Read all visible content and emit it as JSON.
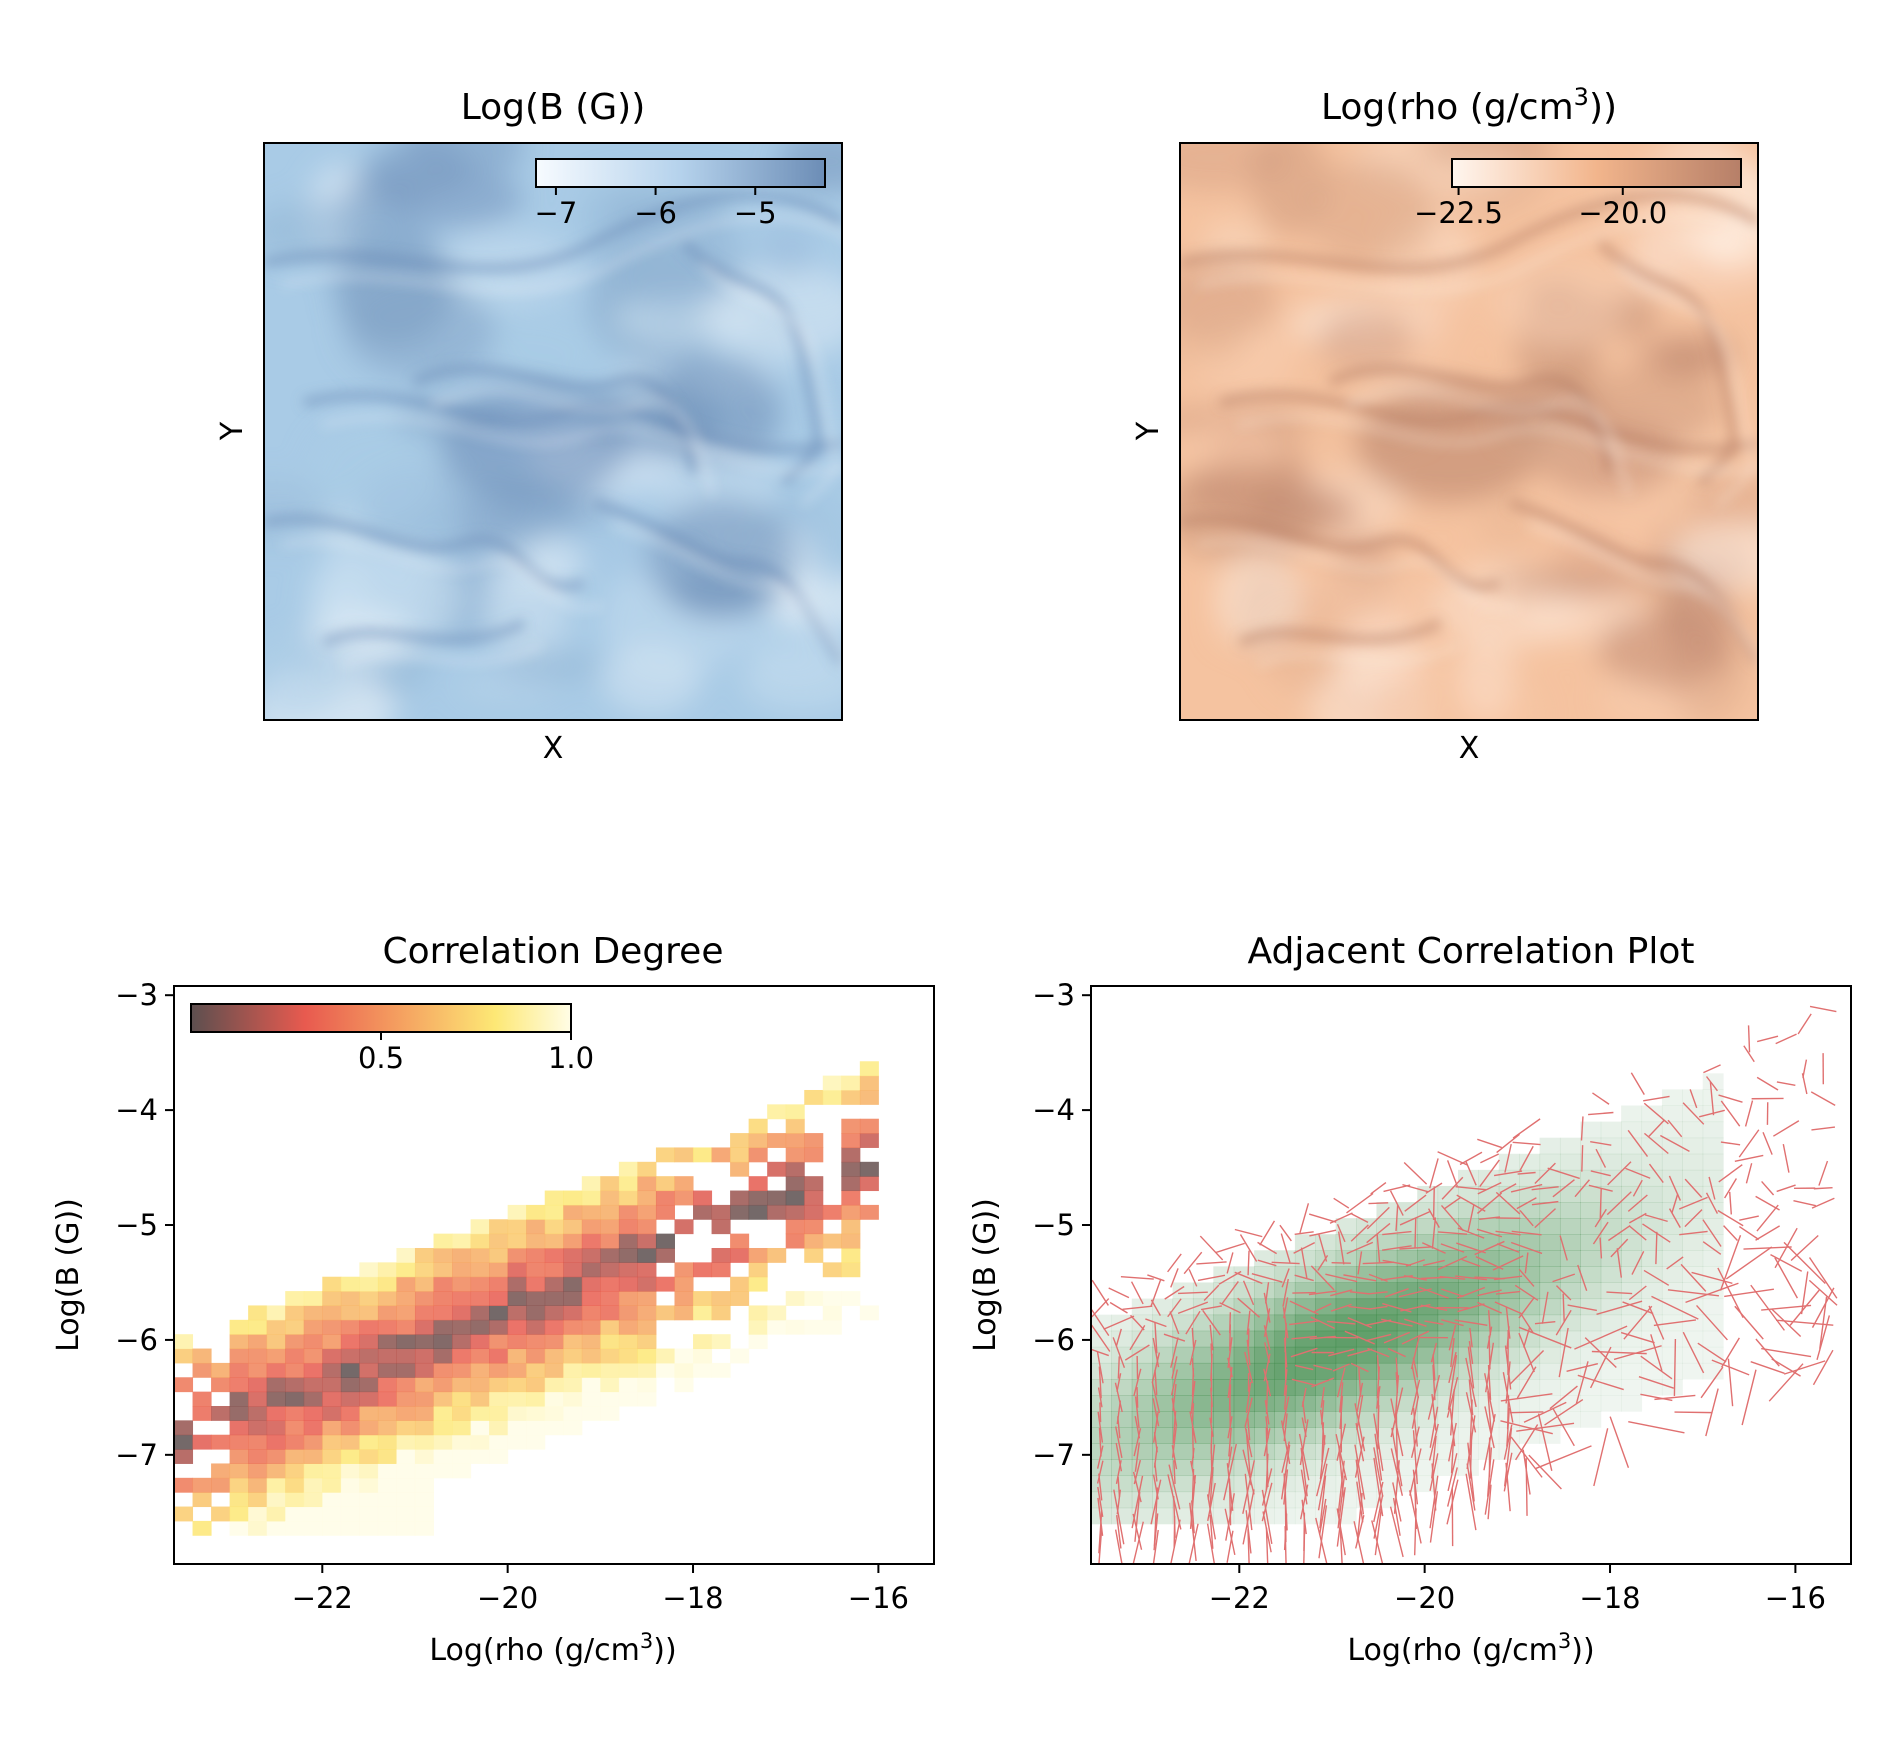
{
  "chart_data": [
    {
      "type": "heatmap",
      "title": "Log(B (G))",
      "xlabel": "X",
      "ylabel": "Y",
      "colormap": "Blues",
      "colorbar": {
        "ticks": [
          -7,
          -6,
          -5
        ],
        "tick_labels": [
          "−7",
          "−6",
          "−5"
        ],
        "range": [
          -7.2,
          -4.3
        ],
        "placement": "top-right"
      },
      "colors": {
        "low": "#f3f8fc",
        "high": "#6c8db6",
        "field": "#a9cbe6"
      }
    },
    {
      "type": "heatmap",
      "title": "Log(rho (g/cm",
      "title_sup": "3",
      "title_end": "))",
      "xlabel": "X",
      "ylabel": "Y",
      "colormap": "Oranges",
      "colorbar": {
        "ticks": [
          -22.5,
          -20.0
        ],
        "tick_labels": [
          "−22.5",
          "−20.0"
        ],
        "range": [
          -22.6,
          -18.2
        ],
        "placement": "top-right"
      },
      "colors": {
        "low": "#fff3ea",
        "high": "#b67f68",
        "field": "#f5c3a0"
      }
    },
    {
      "type": "heatmap",
      "title": "Correlation Degree",
      "xlabel": "Log(rho (g/cm",
      "xlabel_sup": "3",
      "xlabel_end": "))",
      "ylabel": "Log(B (G))",
      "xlim": [
        -23.6,
        -15.4
      ],
      "ylim": [
        -7.95,
        -2.92
      ],
      "xticks": [
        -22,
        -20,
        -18,
        -16
      ],
      "xtick_labels": [
        "−22",
        "−20",
        "−18",
        "−16"
      ],
      "yticks": [
        -3,
        -4,
        -5,
        -6,
        -7
      ],
      "ytick_labels": [
        "−3",
        "−4",
        "−5",
        "−6",
        "−7"
      ],
      "colormap": "hot (reversed)",
      "colorbar": {
        "ticks": [
          0.5,
          1.0
        ],
        "tick_labels": [
          "0.5",
          "1.0"
        ],
        "range": [
          0.0,
          1.0
        ],
        "placement": "top-left"
      },
      "relation": {
        "ridge_intercept": 0.64,
        "ridge_slope": 0.32,
        "band_low_half_width": 1.3,
        "band_high_half_width": 0.85
      },
      "colors": {
        "c0": "#5c4f4f",
        "c1": "#e85a4f",
        "c2": "#f5a060",
        "c3": "#fde875",
        "c4": "#fffde6"
      }
    },
    {
      "type": "scatter",
      "title": "Adjacent Correlation Plot",
      "xlabel": "Log(rho (g/cm",
      "xlabel_sup": "3",
      "xlabel_end": "))",
      "ylabel": "Log(B (G))",
      "xlim": [
        -23.6,
        -15.4
      ],
      "ylim": [
        -7.95,
        -2.92
      ],
      "xticks": [
        -22,
        -20,
        -18,
        -16
      ],
      "xtick_labels": [
        "−22",
        "−20",
        "−18",
        "−16"
      ],
      "yticks": [
        -3,
        -4,
        -5,
        -6,
        -7
      ],
      "ytick_labels": [
        "−3",
        "−4",
        "−5",
        "−6",
        "−7"
      ],
      "description": "Green density background with red direction segments",
      "colors": {
        "density": "#3f8a4a",
        "segments": "#e07070"
      }
    }
  ]
}
